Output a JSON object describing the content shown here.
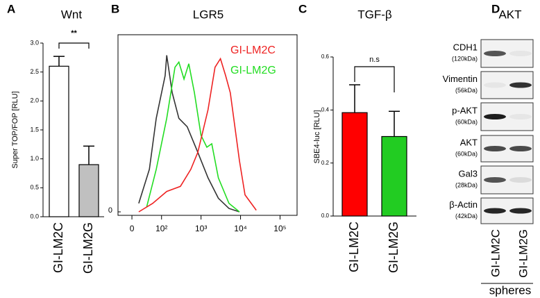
{
  "chart_data": [
    {
      "type": "bar",
      "panel": "A",
      "title": "Wnt",
      "y_label": "Super TOP/FOP [RLU]",
      "categories": [
        "GI-LM2C",
        "GI-LM2G"
      ],
      "values": [
        2.6,
        0.9
      ],
      "errors": [
        0.17,
        0.32
      ],
      "colors": [
        "#ffffff",
        "#c0c0c0"
      ],
      "annotation": "**",
      "ylim": [
        0,
        3
      ],
      "yticks": [
        {
          "value": 0,
          "label": "0.0"
        },
        0.5,
        {
          "value": 1,
          "label": "1.0"
        },
        1.5,
        {
          "value": 2,
          "label": "2.0"
        },
        2.5,
        {
          "value": 3,
          "label": "3.0"
        }
      ]
    },
    {
      "type": "line",
      "panel": "B",
      "title": "LGR5",
      "xscale": "biexponential",
      "xlim": [
        -47,
        270000
      ],
      "xticks": [
        0,
        {
          "value": 100,
          "label": "10²"
        },
        {
          "value": 1000,
          "label": "10³"
        },
        {
          "value": 10000,
          "label": "10⁴"
        },
        {
          "value": 100000,
          "label": "10⁵"
        }
      ],
      "ylim": [
        0,
        100
      ],
      "yticks": [
        0
      ],
      "series": [
        {
          "color": "#333333",
          "x": [
            23,
            59,
            82,
            123,
            135,
            186,
            275,
            447,
            830,
            1500,
            2750,
            5100,
            9400
          ],
          "values": [
            5,
            25,
            55,
            80,
            92,
            70,
            55,
            50,
            35,
            20,
            8,
            2,
            0
          ]
        },
        {
          "name": "GI-LM2G",
          "color": "#22dd22",
          "x": [
            50,
            82,
            135,
            219,
            275,
            370,
            490,
            680,
            1000,
            1400,
            1870,
            2750,
            5100,
            9400
          ],
          "values": [
            3,
            25,
            55,
            85,
            88,
            78,
            87,
            70,
            45,
            38,
            40,
            20,
            5,
            0
          ]
        },
        {
          "name": "GI-LM2C",
          "color": "#ee2222",
          "x": [
            23,
            70,
            135,
            300,
            550,
            830,
            1500,
            2260,
            3100,
            4200,
            5500,
            9400,
            13000,
            25000
          ],
          "values": [
            0,
            5,
            12,
            15,
            25,
            35,
            60,
            85,
            90,
            80,
            70,
            30,
            10,
            1
          ]
        }
      ]
    },
    {
      "type": "bar",
      "panel": "C",
      "title": "TGF-β",
      "y_label": "SBE4-luc [RLU]",
      "categories": [
        "GI-LM2C",
        "GI-LM2G"
      ],
      "values": [
        0.39,
        0.3
      ],
      "errors": [
        0.105,
        0.095
      ],
      "colors": [
        "#ff0000",
        "#22cc22"
      ],
      "annotation": "n.s",
      "ylim": [
        0,
        0.6
      ],
      "yticks": [
        {
          "value": 0,
          "label": "0.0"
        },
        0.2,
        0.4,
        0.6
      ]
    },
    {
      "type": "blot",
      "panel": "D",
      "title": "AKT",
      "rows": [
        {
          "label": "CDH1",
          "size": "(120kDa)"
        },
        {
          "label": "Vimentin",
          "size": "(56kDa)"
        },
        {
          "label": "p-AKT",
          "size": "(60kDa)"
        },
        {
          "label": "AKT",
          "size": "(60kDa)"
        },
        {
          "label": "Gal3",
          "size": "(28kDa)"
        },
        {
          "label": "β-Actin",
          "size": "(42kDa)"
        }
      ],
      "lanes": [
        "GI-LM2C",
        "GI-LM2G"
      ],
      "group": "spheres"
    }
  ]
}
